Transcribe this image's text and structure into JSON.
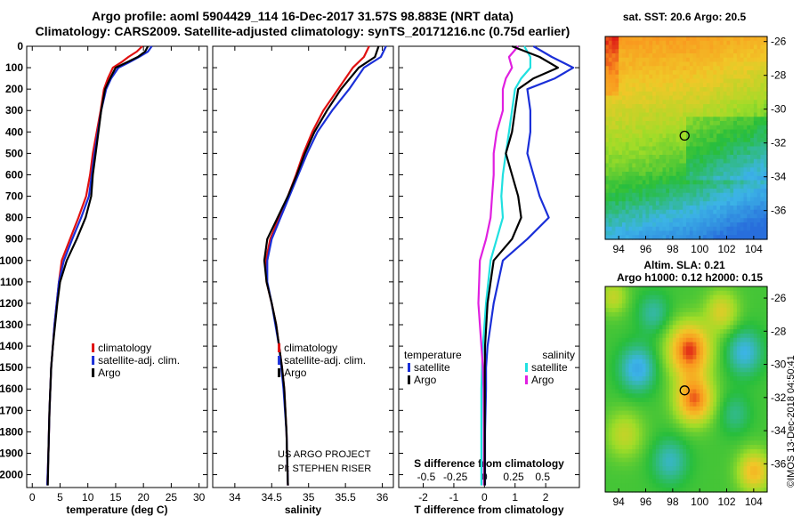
{
  "title": {
    "line1": "Argo profile: aoml 5904429_114 16-Dec-2017 31.57S 98.883E (NRT data)",
    "line2": "Climatology: CARS2009. Satellite-adjusted climatology: synTS_20171216.nc (0.75d earlier)"
  },
  "credits": {
    "project": "US ARGO PROJECT",
    "pi": "PI: STEPHEN RISER",
    "imos": "©IMOS 13-Dec-2018 04:50:41"
  },
  "colors": {
    "climatology": "#e01010",
    "satellite": "#1a2fd8",
    "argo": "#000000",
    "s_satellite": "#20e0e0",
    "s_argo": "#e020e0"
  },
  "chart_data": [
    {
      "type": "line",
      "panel": "temperature",
      "xlabel": "temperature (deg C)",
      "ylabel": "",
      "xlim": [
        -1,
        31.5
      ],
      "ylim": [
        2060,
        0
      ],
      "xticks": [
        "0",
        "5",
        "10",
        "15",
        "20",
        "25",
        "30"
      ],
      "yticks": [
        "0",
        "100",
        "200",
        "300",
        "400",
        "500",
        "600",
        "700",
        "800",
        "900",
        "1000",
        "1100",
        "1200",
        "1300",
        "1400",
        "1500",
        "1600",
        "1700",
        "1800",
        "1900",
        "2000"
      ],
      "legend": [
        "climatology",
        "satellite-adj. clim.",
        "Argo"
      ],
      "legend_position": "lower-center",
      "series": [
        {
          "name": "climatology",
          "x": [
            19.8,
            18.8,
            17.3,
            16.0,
            14.5,
            13.6,
            12.9,
            12.3,
            11.6,
            10.9,
            10.4,
            9.7,
            8.3,
            6.8,
            5.3,
            4.8,
            4.4,
            4.0,
            3.7,
            3.4,
            3.1,
            2.9,
            2.7
          ],
          "y": [
            0,
            25,
            50,
            75,
            100,
            150,
            200,
            300,
            400,
            500,
            600,
            700,
            800,
            900,
            1000,
            1100,
            1200,
            1300,
            1400,
            1500,
            1700,
            1900,
            2050
          ]
        },
        {
          "name": "satellite-adj. clim.",
          "x": [
            21.5,
            20.8,
            19.2,
            17.4,
            15.5,
            14.2,
            13.3,
            12.4,
            11.8,
            11.2,
            10.7,
            10.2,
            8.8,
            7.2,
            5.7,
            4.8,
            4.4,
            4.0,
            3.7,
            3.4,
            3.1,
            2.9,
            2.7
          ],
          "y": [
            0,
            25,
            50,
            75,
            100,
            150,
            200,
            300,
            400,
            500,
            600,
            700,
            800,
            900,
            1000,
            1100,
            1200,
            1300,
            1400,
            1500,
            1700,
            1900,
            2050
          ]
        },
        {
          "name": "Argo",
          "x": [
            20.8,
            20.3,
            19.0,
            17.0,
            15.0,
            14.0,
            13.1,
            12.4,
            11.9,
            11.4,
            10.9,
            10.6,
            9.6,
            8.0,
            6.2,
            5.0,
            4.5,
            4.1,
            3.7,
            3.4,
            3.1,
            2.9,
            2.8
          ],
          "y": [
            0,
            25,
            50,
            75,
            100,
            150,
            200,
            300,
            400,
            500,
            600,
            700,
            800,
            900,
            1000,
            1100,
            1200,
            1300,
            1400,
            1500,
            1700,
            1900,
            2050
          ]
        }
      ]
    },
    {
      "type": "line",
      "panel": "salinity",
      "xlabel": "salinity",
      "xlim": [
        33.7,
        36.15
      ],
      "ylim": [
        2060,
        0
      ],
      "xticks": [
        "34",
        "34.5",
        "35",
        "35.5",
        "36"
      ],
      "legend": [
        "climatology",
        "satellite-adj. clim.",
        "Argo"
      ],
      "legend_position": "lower-center",
      "series": [
        {
          "name": "climatology",
          "x": [
            35.82,
            35.75,
            35.6,
            35.4,
            35.2,
            35.05,
            34.93,
            34.83,
            34.72,
            34.6,
            34.48,
            34.42,
            34.43,
            34.5,
            34.56,
            34.6,
            34.64,
            34.67,
            34.7,
            34.72
          ],
          "y": [
            0,
            50,
            100,
            200,
            300,
            400,
            500,
            600,
            700,
            800,
            900,
            1000,
            1100,
            1200,
            1300,
            1400,
            1500,
            1600,
            1800,
            2050
          ]
        },
        {
          "name": "satellite-adj. clim.",
          "x": [
            36.05,
            35.98,
            35.75,
            35.55,
            35.32,
            35.12,
            34.98,
            34.86,
            34.74,
            34.62,
            34.5,
            34.44,
            34.44,
            34.5,
            34.55,
            34.6,
            34.63,
            34.66,
            34.7,
            34.72
          ],
          "y": [
            0,
            50,
            100,
            200,
            300,
            400,
            500,
            600,
            700,
            800,
            900,
            1000,
            1100,
            1200,
            1300,
            1400,
            1500,
            1600,
            1800,
            2050
          ]
        },
        {
          "name": "Argo",
          "x": [
            35.95,
            35.9,
            35.68,
            35.44,
            35.25,
            35.08,
            34.95,
            34.84,
            34.72,
            34.58,
            34.44,
            34.4,
            34.43,
            34.5,
            34.56,
            34.6,
            34.64,
            34.67,
            34.7,
            34.72
          ],
          "y": [
            0,
            50,
            100,
            200,
            300,
            400,
            500,
            600,
            700,
            800,
            900,
            1000,
            1100,
            1200,
            1300,
            1400,
            1500,
            1600,
            1800,
            2050
          ]
        }
      ]
    },
    {
      "type": "line",
      "panel": "difference",
      "xlabel": "T difference from climatology",
      "xlabel_top": "S difference  from climatology",
      "xlim": [
        -2.8,
        3.1
      ],
      "ylim": [
        2060,
        0
      ],
      "xticks": [
        "-2",
        "-1",
        "0",
        "1",
        "2"
      ],
      "xticks_top": [
        "-0.5",
        "-0.25",
        "0",
        "0.25",
        "0.5"
      ],
      "legend_left_title": "temperature",
      "legend_right_title": "salinity",
      "legend": [
        "satellite",
        "Argo",
        "satellite",
        "Argo"
      ],
      "series": [
        {
          "name": "satellite",
          "x": [
            1.6,
            2.2,
            2.9,
            2.3,
            1.4,
            1.5,
            1.5,
            1.4,
            1.6,
            1.8,
            2.1,
            1.4,
            0.6,
            0.3,
            0.1,
            0.05,
            0.05,
            0.02,
            0.02,
            0.02
          ],
          "y": [
            0,
            50,
            100,
            150,
            200,
            300,
            400,
            500,
            600,
            700,
            800,
            900,
            1000,
            1200,
            1400,
            1500,
            1600,
            1800,
            1900,
            2050
          ]
        },
        {
          "name": "Argo",
          "x": [
            0.9,
            1.8,
            2.4,
            1.6,
            1.1,
            1.0,
            0.9,
            0.7,
            0.9,
            1.1,
            1.2,
            0.9,
            0.3,
            0.1,
            0.02,
            0.01,
            0.01,
            0.01,
            0.01,
            0.01
          ],
          "y": [
            0,
            50,
            100,
            150,
            200,
            300,
            400,
            500,
            600,
            700,
            800,
            900,
            1000,
            1200,
            1400,
            1500,
            1600,
            1800,
            1900,
            2050
          ]
        },
        {
          "name": "satellite",
          "x": [
            1.3,
            1.5,
            1.5,
            1.2,
            1.0,
            0.9,
            0.8,
            0.7,
            0.6,
            0.55,
            0.6,
            0.4,
            0.2,
            0.05,
            -0.05,
            -0.08,
            -0.1,
            -0.1,
            -0.1,
            -0.1
          ],
          "y": [
            0,
            50,
            100,
            150,
            200,
            300,
            400,
            500,
            600,
            700,
            800,
            900,
            1000,
            1200,
            1400,
            1500,
            1600,
            1800,
            1900,
            2050
          ]
        },
        {
          "name": "Argo",
          "x": [
            1.1,
            0.8,
            0.9,
            0.7,
            0.6,
            0.6,
            0.4,
            0.3,
            0.3,
            0.25,
            0.2,
            0.05,
            -0.15,
            -0.2,
            -0.1,
            -0.05,
            -0.03,
            -0.02,
            -0.02,
            -0.02
          ],
          "y": [
            0,
            50,
            100,
            150,
            200,
            300,
            400,
            500,
            600,
            700,
            800,
            900,
            1000,
            1200,
            1400,
            1500,
            1600,
            1800,
            1900,
            2050
          ]
        }
      ]
    },
    {
      "type": "heatmap",
      "panel": "sst-map",
      "title": "sat. SST: 20.6 Argo: 20.5",
      "xlim": [
        93,
        105
      ],
      "ylim": [
        -37.7,
        -25.7
      ],
      "xticks": [
        "94",
        "96",
        "98",
        "100",
        "102",
        "104"
      ],
      "yticks": [
        "-26",
        "-28",
        "-30",
        "-32",
        "-34",
        "-36"
      ],
      "marker": {
        "lon": 98.883,
        "lat": -31.57
      }
    },
    {
      "type": "heatmap",
      "panel": "sla-map",
      "title": "Altim. SLA: 0.21",
      "subtitle": "Argo h1000: 0.12 h2000: 0.15",
      "xlim": [
        93,
        105
      ],
      "ylim": [
        -37.7,
        -25.3
      ],
      "xticks": [
        "94",
        "96",
        "98",
        "100",
        "102",
        "104"
      ],
      "yticks": [
        "-26",
        "-28",
        "-30",
        "-32",
        "-34",
        "-36"
      ],
      "marker": {
        "lon": 98.883,
        "lat": -31.57
      }
    }
  ]
}
